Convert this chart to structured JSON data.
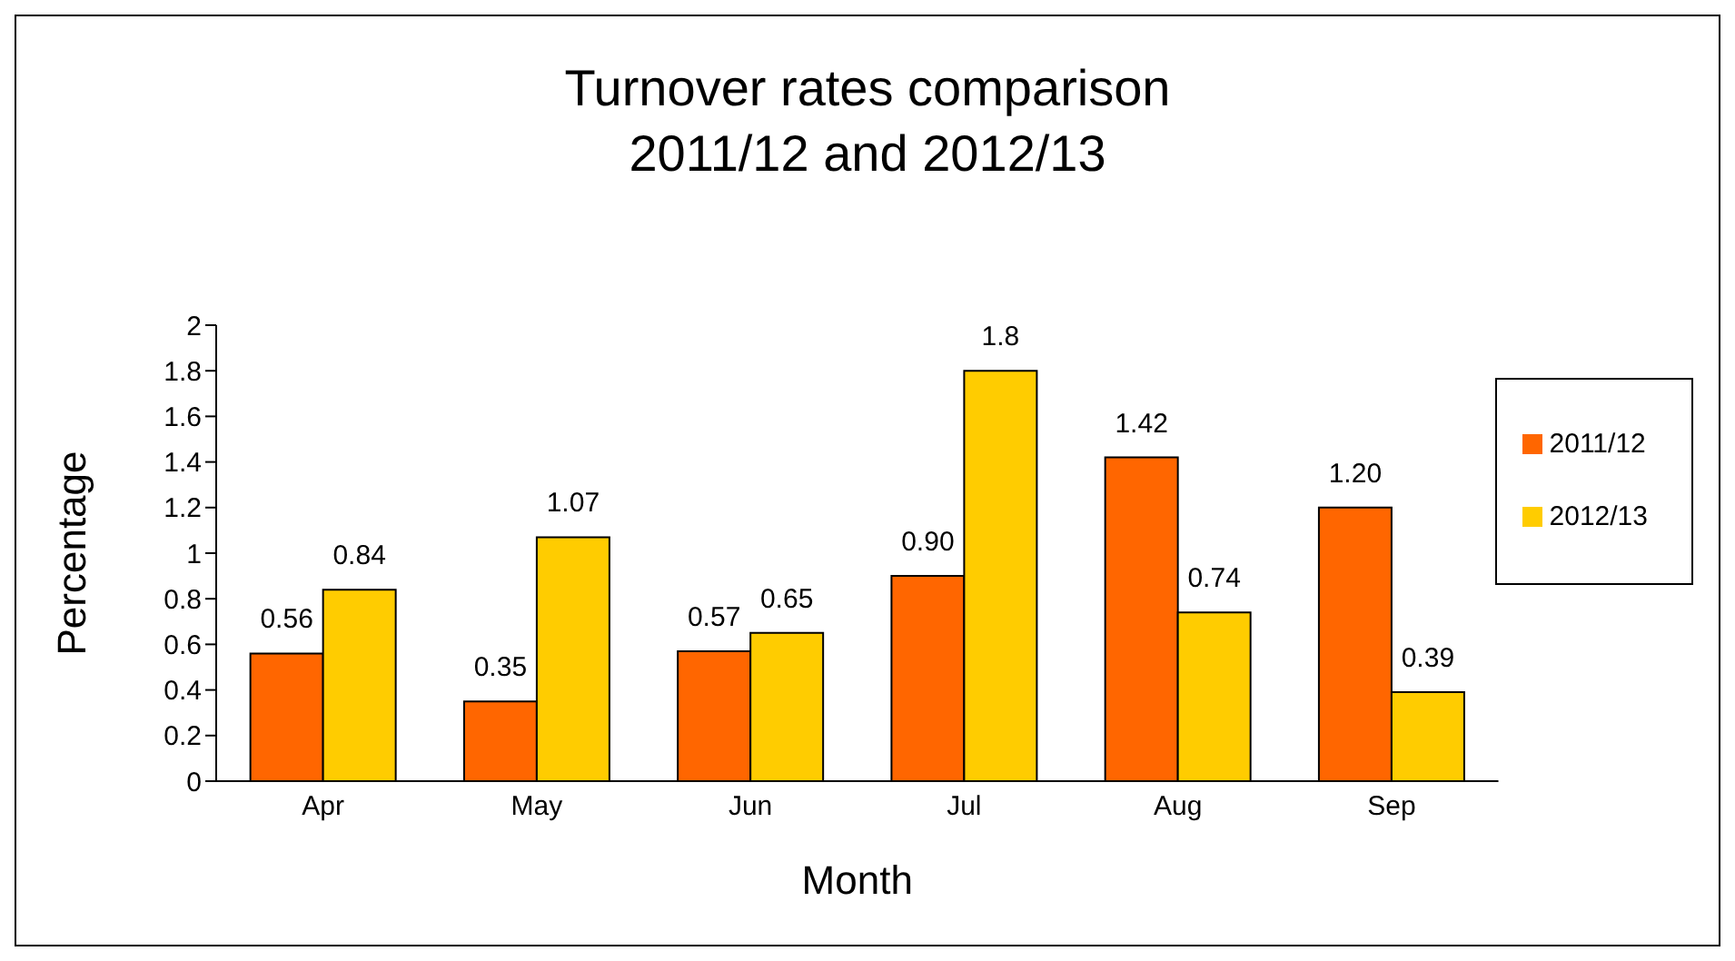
{
  "chart_data": {
    "type": "bar",
    "title": "Turnover rates comparison\n2011/12 and 2012/13",
    "xlabel": "Month",
    "ylabel": "Percentage",
    "categories": [
      "Apr",
      "May",
      "Jun",
      "Jul",
      "Aug",
      "Sep"
    ],
    "series": [
      {
        "name": "2011/12",
        "color": "#ff6600",
        "values": [
          0.56,
          0.35,
          0.57,
          0.9,
          1.42,
          1.2
        ],
        "value_labels": [
          "0.56",
          "0.35",
          "0.57",
          "0.90",
          "1.42",
          "1.20"
        ]
      },
      {
        "name": "2012/13",
        "color": "#ffcc00",
        "values": [
          0.84,
          1.07,
          0.65,
          1.8,
          0.74,
          0.39
        ],
        "value_labels": [
          "0.84",
          "1.07",
          "0.65",
          "1.8",
          "0.74",
          "0.39"
        ]
      }
    ],
    "ylim": [
      0,
      2
    ],
    "yticks": [
      0,
      0.2,
      0.4,
      0.6,
      0.8,
      1,
      1.2,
      1.4,
      1.6,
      1.8,
      2
    ],
    "grid": false,
    "legend": "right"
  }
}
